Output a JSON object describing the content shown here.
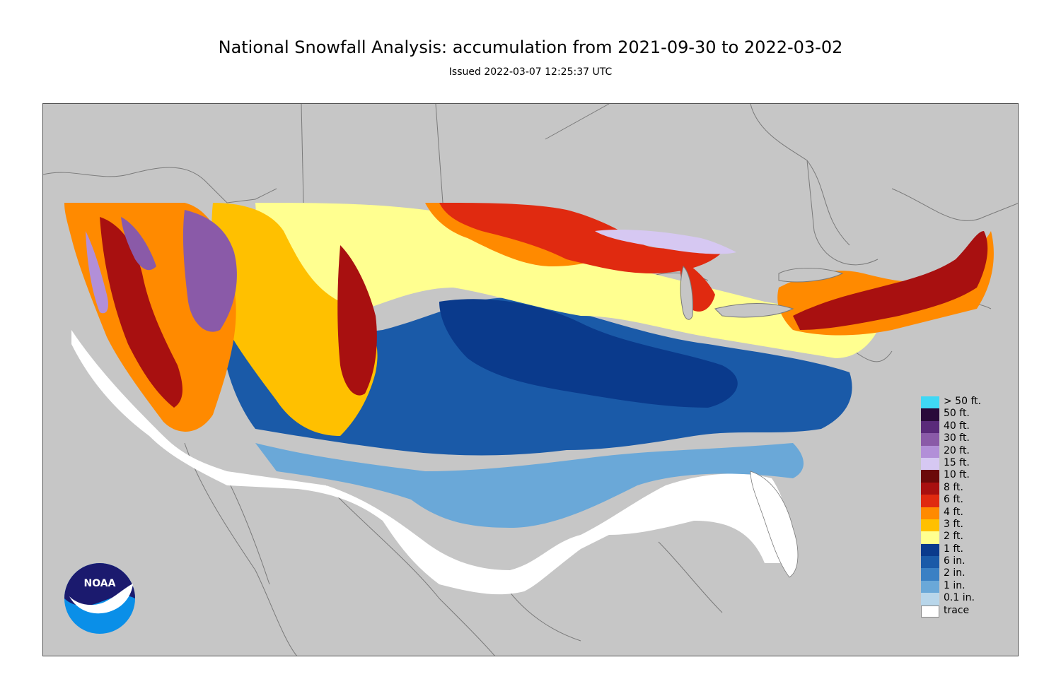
{
  "title": "National Snowfall Analysis: accumulation from 2021-09-30 to 2022-03-02",
  "subtitle": "Issued 2022-03-07 12:25:37 UTC",
  "map": {
    "background_color": "#c6c6c6",
    "border_color": "#555555",
    "land_outline_color": "#7a7a7a"
  },
  "legend": [
    {
      "label": "> 50 ft.",
      "color": "#3fd8f5"
    },
    {
      "label": "50 ft.",
      "color": "#2a0a3a"
    },
    {
      "label": "40 ft.",
      "color": "#5a2a7a"
    },
    {
      "label": "30 ft.",
      "color": "#8a5aa8"
    },
    {
      "label": "20 ft.",
      "color": "#b28fd8"
    },
    {
      "label": "15 ft.",
      "color": "#d6c8f2"
    },
    {
      "label": "10 ft.",
      "color": "#6b0a0a"
    },
    {
      "label": "8 ft.",
      "color": "#a81010"
    },
    {
      "label": "6 ft.",
      "color": "#e02a10"
    },
    {
      "label": "4 ft.",
      "color": "#ff8a00"
    },
    {
      "label": "3 ft.",
      "color": "#ffc000"
    },
    {
      "label": "2 ft.",
      "color": "#ffff90"
    },
    {
      "label": "1 ft.",
      "color": "#0a3a8c"
    },
    {
      "label": "6 in.",
      "color": "#1a5aa8"
    },
    {
      "label": "2 in.",
      "color": "#3a80c4"
    },
    {
      "label": "1 in.",
      "color": "#6aa8d8"
    },
    {
      "label": "0.1 in.",
      "color": "#b8d6ea"
    },
    {
      "label": "trace",
      "color": "#ffffff"
    }
  ],
  "logo": {
    "text": "NOAA",
    "colors": {
      "navy": "#1b1a6e",
      "blue": "#0a8fe8",
      "white": "#ffffff"
    }
  }
}
